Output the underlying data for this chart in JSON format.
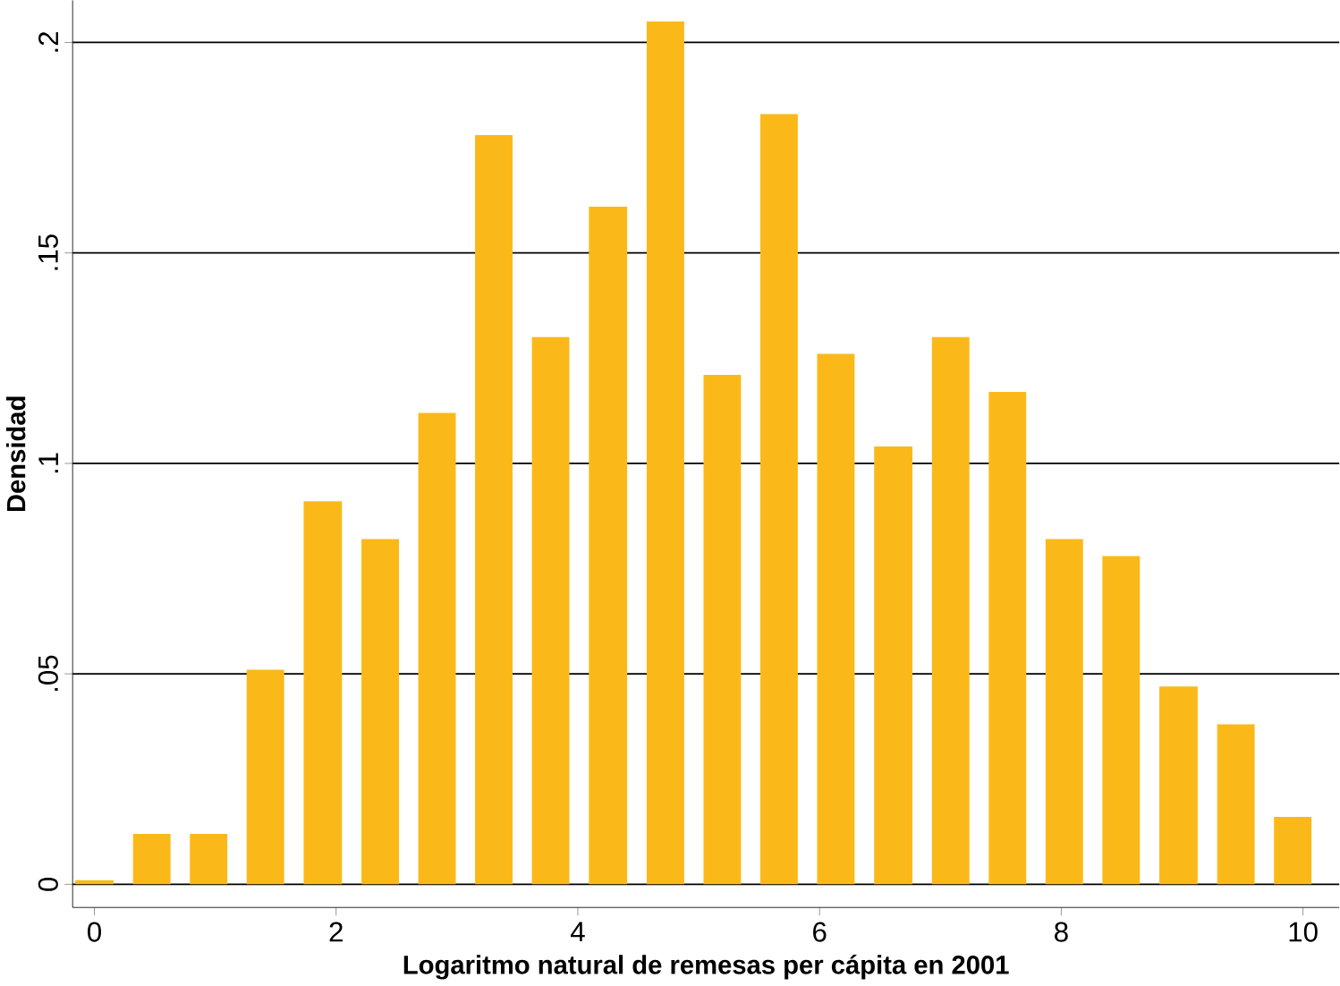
{
  "chart_data": {
    "type": "histogram",
    "xlabel": "Logaritmo natural de remesas per cápita en 2001",
    "ylabel": "Densidad",
    "color": "#fbb919",
    "bins": [
      -0.24,
      0.24,
      0.71,
      1.18,
      1.65,
      2.13,
      2.6,
      3.07,
      3.54,
      4.01,
      4.49,
      4.96,
      5.43,
      5.9,
      6.37,
      6.85,
      7.32,
      7.79,
      8.26,
      8.73,
      9.21,
      9.68,
      10.15
    ],
    "values": [
      0.001,
      0.012,
      0.012,
      0.051,
      0.091,
      0.082,
      0.112,
      0.178,
      0.13,
      0.161,
      0.205,
      0.121,
      0.183,
      0.126,
      0.104,
      0.13,
      0.117,
      0.082,
      0.078,
      0.047,
      0.038,
      0.016
    ],
    "xlim": [
      -0.18,
      10.3
    ],
    "ylim": [
      -0.0055,
      0.21
    ],
    "xticks": [
      0,
      2,
      4,
      6,
      8,
      10
    ],
    "yticks": [
      0,
      {
        "value": 0.05,
        "label": ".05"
      },
      {
        "value": 0.1,
        "label": ".1"
      },
      {
        "value": 0.15,
        "label": ".15"
      },
      {
        "value": 0.2,
        "label": ".2"
      }
    ],
    "grid": "y"
  }
}
